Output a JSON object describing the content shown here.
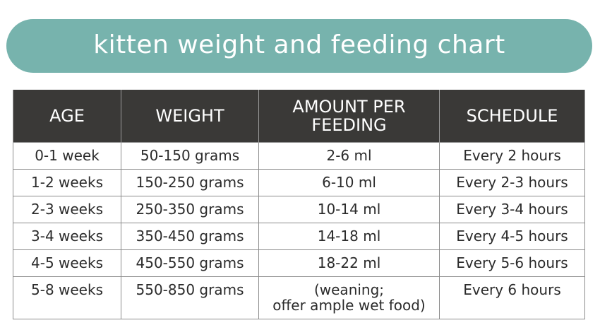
{
  "title": "kitten weight and feeding chart",
  "colors": {
    "banner": "#77b3ad",
    "header_bg": "#3a3937",
    "header_text": "#ffffff",
    "body_text": "#2b2b2b"
  },
  "table": {
    "headers": {
      "age": "AGE",
      "weight": "WEIGHT",
      "amount_line1": "AMOUNT PER",
      "amount_line2": "FEEDING",
      "schedule": "SCHEDULE"
    },
    "rows": [
      {
        "age": "0-1 week",
        "weight": "50-150 grams",
        "amount": "2-6 ml",
        "schedule": "Every 2 hours"
      },
      {
        "age": "1-2 weeks",
        "weight": "150-250 grams",
        "amount": "6-10 ml",
        "schedule": "Every 2-3 hours"
      },
      {
        "age": "2-3 weeks",
        "weight": "250-350 grams",
        "amount": "10-14 ml",
        "schedule": "Every 3-4 hours"
      },
      {
        "age": "3-4 weeks",
        "weight": "350-450 grams",
        "amount": "14-18 ml",
        "schedule": "Every 4-5 hours"
      },
      {
        "age": "4-5 weeks",
        "weight": "450-550 grams",
        "amount": "18-22 ml",
        "schedule": "Every 5-6 hours"
      },
      {
        "age": "5-8 weeks",
        "weight": "550-850 grams",
        "amount_line1": "(weaning;",
        "amount_line2": "offer ample wet food)",
        "schedule": "Every 6 hours"
      }
    ]
  }
}
